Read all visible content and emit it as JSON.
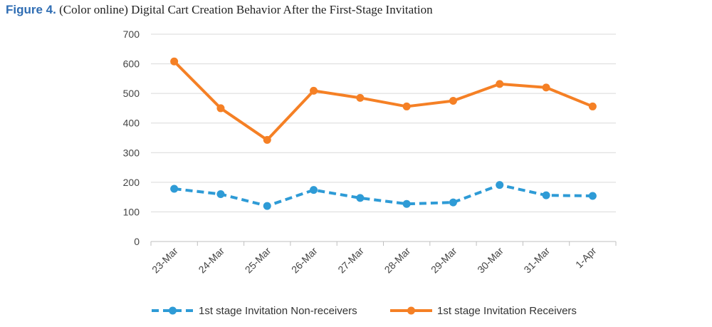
{
  "caption": {
    "label": "Figure 4.",
    "text": "(Color online) Digital Cart Creation Behavior After the First-Stage Invitation"
  },
  "chart_data": {
    "type": "line",
    "categories": [
      "23-Mar",
      "24-Mar",
      "25-Mar",
      "26-Mar",
      "27-Mar",
      "28-Mar",
      "29-Mar",
      "30-Mar",
      "31-Mar",
      "1-Apr"
    ],
    "series": [
      {
        "name": "1st stage Invitation Non-receivers",
        "color": "#2e9bd6",
        "style": "dashed",
        "values": [
          178,
          160,
          120,
          174,
          147,
          127,
          132,
          191,
          156,
          154
        ]
      },
      {
        "name": "1st stage Invitation Receivers",
        "color": "#f58025",
        "style": "solid",
        "values": [
          608,
          450,
          343,
          509,
          485,
          456,
          475,
          532,
          520,
          456
        ]
      }
    ],
    "ylim": [
      0,
      700
    ],
    "yticks": [
      0,
      100,
      200,
      300,
      400,
      500,
      600,
      700
    ],
    "grid": true,
    "legend": "bottom"
  }
}
